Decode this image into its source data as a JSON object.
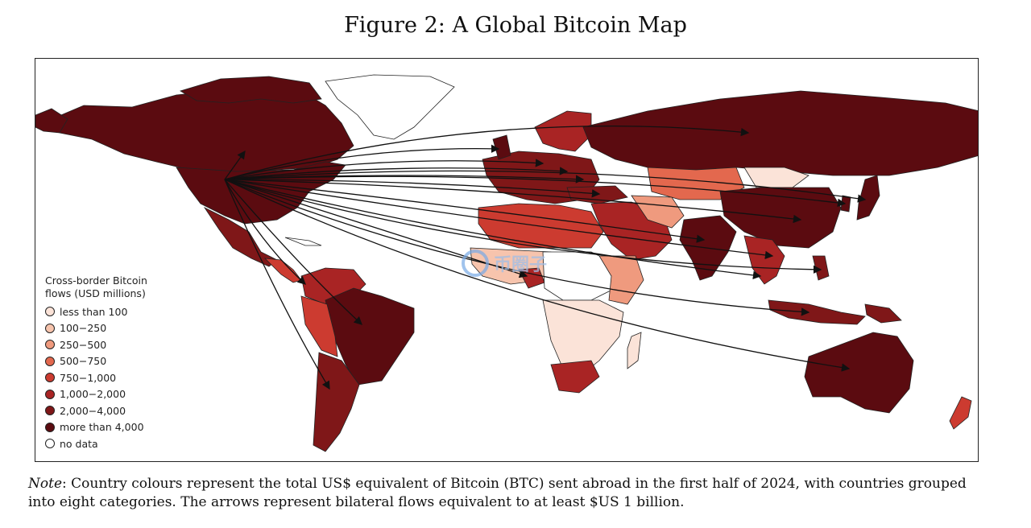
{
  "title": "Figure 2: A Global Bitcoin Map",
  "legend": {
    "title_line1": "Cross-border Bitcoin",
    "title_line2": "flows (USD millions)",
    "items": [
      {
        "label": "less than 100",
        "color": "#fbe3d8"
      },
      {
        "label": "100−250",
        "color": "#f7c4ad"
      },
      {
        "label": "250−500",
        "color": "#ef9a7e"
      },
      {
        "label": "500−750",
        "color": "#e3684e"
      },
      {
        "label": "750−1,000",
        "color": "#cc3b30"
      },
      {
        "label": "1,000−2,000",
        "color": "#a92424"
      },
      {
        "label": "2,000−4,000",
        "color": "#7f1718"
      },
      {
        "label": "more than 4,000",
        "color": "#5b0b10"
      },
      {
        "label": "no data",
        "color": "#ffffff"
      }
    ]
  },
  "watermark": "币圈子",
  "note": {
    "label": "Note",
    "text": ": Country colours represent the total US$ equivalent of Bitcoin (BTC) sent abroad in the first half of 2024, with countries grouped into eight categories. The arrows represent bilateral flows equivalent to at least $US 1 billion."
  },
  "map": {
    "arrow_origin": "United States",
    "arrow_destinations": [
      "Russia",
      "United Kingdom",
      "Europe",
      "Turkey",
      "Japan",
      "South Korea",
      "China",
      "India",
      "Vietnam",
      "Thailand",
      "Indonesia",
      "Philippines",
      "Australia",
      "Brazil",
      "Argentina",
      "Colombia",
      "Nigeria",
      "Canada"
    ]
  }
}
